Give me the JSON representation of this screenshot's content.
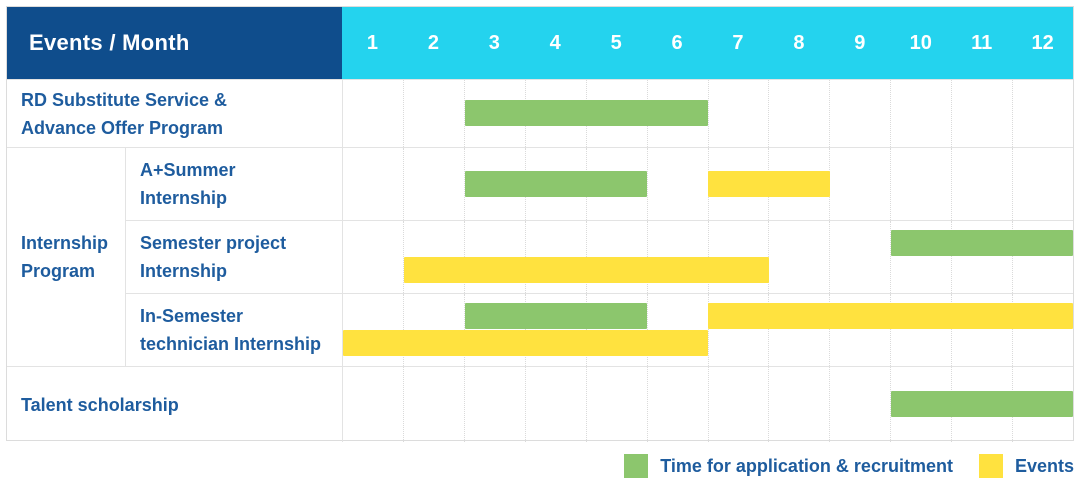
{
  "header": {
    "label": "Events / Month",
    "months": [
      "1",
      "2",
      "3",
      "4",
      "5",
      "6",
      "7",
      "8",
      "9",
      "10",
      "11",
      "12"
    ]
  },
  "groups": {
    "internship_program": "Internship\nProgram"
  },
  "chart_data": {
    "type": "gantt",
    "title": "Events / Month",
    "x_axis": {
      "label": "Month",
      "ticks": [
        "1",
        "2",
        "3",
        "4",
        "5",
        "6",
        "7",
        "8",
        "9",
        "10",
        "11",
        "12"
      ],
      "range": [
        1,
        12
      ]
    },
    "rows": [
      {
        "label": "RD Substitute Service &\nAdvance Offer Program",
        "group": "",
        "tracks": [
          [
            {
              "series": "application",
              "start_month": 3,
              "end_month": 6
            }
          ]
        ]
      },
      {
        "label": "A+Summer\nInternship",
        "group": "Internship Program",
        "tracks": [
          [
            {
              "series": "application",
              "start_month": 3,
              "end_month": 5
            },
            {
              "series": "events",
              "start_month": 7,
              "end_month": 8
            }
          ]
        ]
      },
      {
        "label": "Semester project\nInternship",
        "group": "Internship Program",
        "tracks": [
          [
            {
              "series": "application",
              "start_month": 10,
              "end_month": 12
            }
          ],
          [
            {
              "series": "events",
              "start_month": 2,
              "end_month": 7
            }
          ]
        ]
      },
      {
        "label": "In-Semester\ntechnician Internship",
        "group": "Internship Program",
        "tracks": [
          [
            {
              "series": "application",
              "start_month": 3,
              "end_month": 5
            },
            {
              "series": "events",
              "start_month": 7,
              "end_month": 12
            }
          ],
          [
            {
              "series": "events",
              "start_month": 1,
              "end_month": 6
            }
          ]
        ]
      },
      {
        "label": "Talent scholarship",
        "group": "",
        "tracks": [
          [
            {
              "series": "application",
              "start_month": 10,
              "end_month": 12
            }
          ]
        ]
      }
    ]
  },
  "legend": [
    {
      "series": "application",
      "label": "Time for application & recruitment",
      "color": "#8CC66D"
    },
    {
      "series": "events",
      "label": "Events",
      "color": "#FFE23F"
    }
  ],
  "colors": {
    "header_bg": "#0F4D8C",
    "month_header_bg": "#24D3EE",
    "label_text": "#1E5C9E",
    "application_green": "#8CC66D",
    "events_yellow": "#FFE23F",
    "grid_line": "#E3E3E3"
  }
}
